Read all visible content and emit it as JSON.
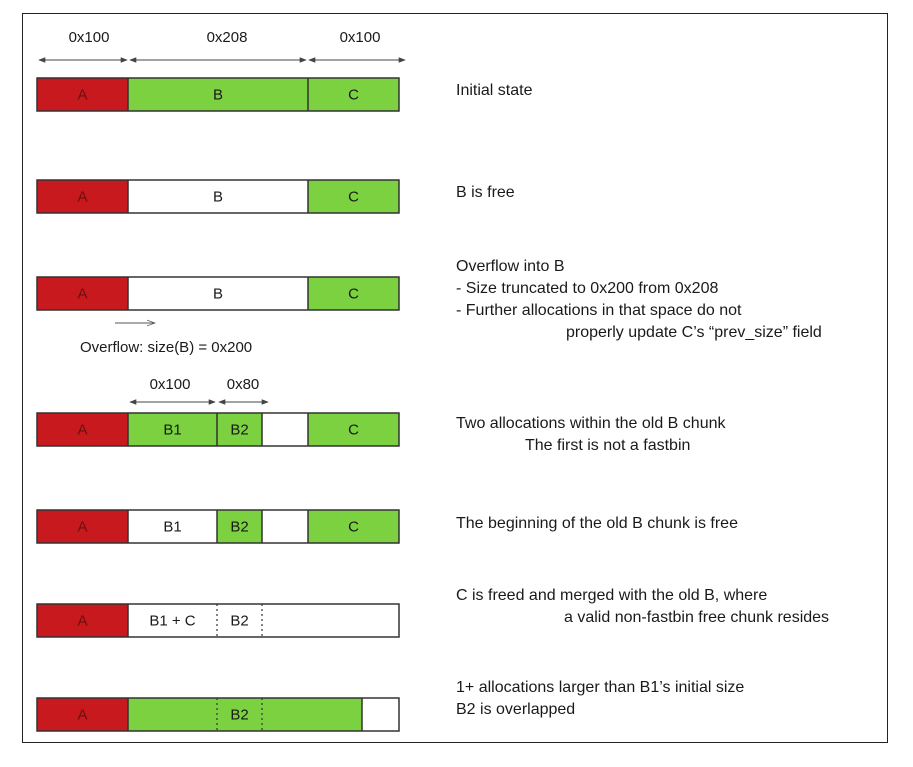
{
  "colors": {
    "red": "#c8191e",
    "green": "#7bd13f",
    "free": "#ffffff",
    "red_label": "#6b1010",
    "green_label": "#1a1a1a",
    "free_label": "#1a1a1a"
  },
  "dimensions": {
    "top": [
      "0x100",
      "0x208",
      "0x100"
    ],
    "row4": [
      "0x100",
      "0x80"
    ]
  },
  "overflow_note": "Overflow: size(B) = 0x200",
  "rows": [
    {
      "segments": [
        {
          "label": "A",
          "state": "allocated-red"
        },
        {
          "label": "B",
          "state": "allocated"
        },
        {
          "label": "C",
          "state": "allocated"
        }
      ],
      "description": [
        "Initial state"
      ]
    },
    {
      "segments": [
        {
          "label": "A",
          "state": "allocated-red"
        },
        {
          "label": "B",
          "state": "free"
        },
        {
          "label": "C",
          "state": "allocated"
        }
      ],
      "description": [
        "B is free"
      ]
    },
    {
      "segments": [
        {
          "label": "A",
          "state": "allocated-red"
        },
        {
          "label": "B",
          "state": "free"
        },
        {
          "label": "C",
          "state": "allocated"
        }
      ],
      "description": [
        "Overflow into B",
        " - Size truncated to 0x200 from 0x208",
        " - Further allocations in that space do not",
        "properly update C’s “prev_size” field"
      ]
    },
    {
      "segments": [
        {
          "label": "A",
          "state": "allocated-red"
        },
        {
          "label": "B1",
          "state": "allocated"
        },
        {
          "label": "B2",
          "state": "allocated"
        },
        {
          "label": "",
          "state": "free"
        },
        {
          "label": "C",
          "state": "allocated"
        }
      ],
      "description": [
        "Two allocations within the old B chunk",
        "The first is not a fastbin"
      ]
    },
    {
      "segments": [
        {
          "label": "A",
          "state": "allocated-red"
        },
        {
          "label": "B1",
          "state": "free"
        },
        {
          "label": "B2",
          "state": "allocated"
        },
        {
          "label": "",
          "state": "free"
        },
        {
          "label": "C",
          "state": "allocated"
        }
      ],
      "description": [
        "The beginning of the old B chunk is free"
      ]
    },
    {
      "segments": [
        {
          "label": "A",
          "state": "allocated-red"
        },
        {
          "label": "B1 + C",
          "state": "free"
        },
        {
          "label": "B2",
          "state": "free-dashed"
        },
        {
          "label": "",
          "state": "free"
        }
      ],
      "description": [
        "C is freed and merged with the old B, where",
        "a valid non-fastbin free chunk resides"
      ]
    },
    {
      "segments": [
        {
          "label": "A",
          "state": "allocated-red"
        },
        {
          "label": "",
          "state": "allocated"
        },
        {
          "label": "B2",
          "state": "allocated-dashed"
        },
        {
          "label": "",
          "state": "allocated"
        },
        {
          "label": "",
          "state": "free"
        }
      ],
      "description": [
        "1+ allocations larger than B1’s initial size",
        "B2 is overlapped"
      ]
    }
  ]
}
